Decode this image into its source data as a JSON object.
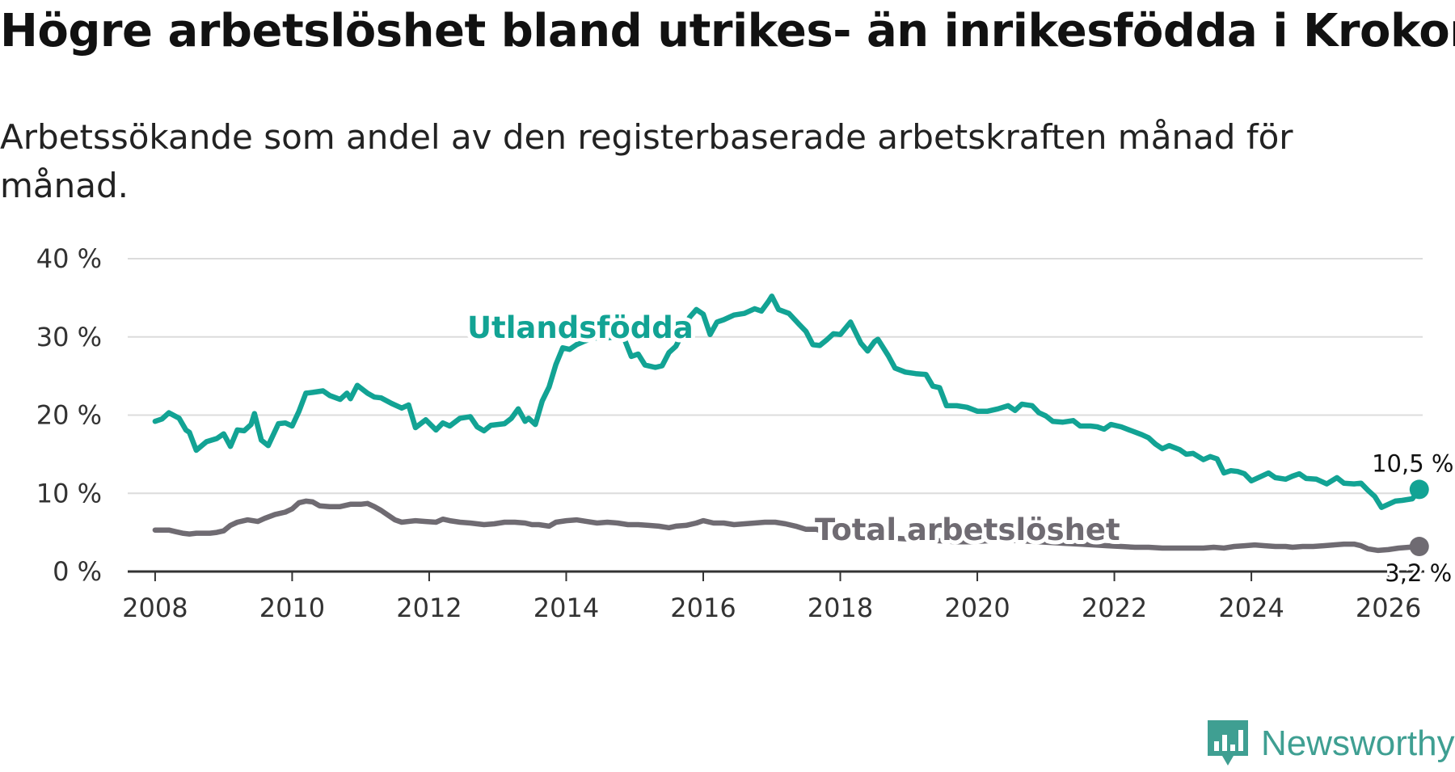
{
  "header": {
    "title": "Högre arbetslöshet bland utrikes- än inrikesfödda i Krokom",
    "subtitle": "Arbetssökande som andel av den registerbaserade arbetskraften månad för månad."
  },
  "brand": {
    "name": "Newsworthy",
    "icon": "newsworthy-logo-icon",
    "color": "#3f9f92"
  },
  "chart_data": {
    "type": "line",
    "title": "Högre arbetslöshet bland utrikes- än inrikesfödda i Krokom",
    "subtitle": "Arbetssökande som andel av den registerbaserade arbetskraften månad för månad.",
    "xlabel": "",
    "ylabel": "",
    "xlim": [
      2007.6,
      2026.5
    ],
    "ylim": [
      0,
      40
    ],
    "x_ticks": [
      2008,
      2010,
      2012,
      2014,
      2016,
      2018,
      2020,
      2022,
      2024,
      2026
    ],
    "x_tick_labels": [
      "2008",
      "2010",
      "2012",
      "2014",
      "2016",
      "2018",
      "2020",
      "2022",
      "2024",
      "2026"
    ],
    "y_ticks": [
      0,
      10,
      20,
      30,
      40
    ],
    "y_tick_labels": [
      "0 %",
      "10 %",
      "20 %",
      "30 %",
      "40 %"
    ],
    "grid": true,
    "legend": "inline labels",
    "series": [
      {
        "name": "Utlandsfödda",
        "color": "#12a394",
        "end_label": "10,5 %",
        "points": [
          [
            2008.0,
            19.2
          ],
          [
            2008.1,
            19.5
          ],
          [
            2008.2,
            20.3
          ],
          [
            2008.35,
            19.6
          ],
          [
            2008.45,
            18.1
          ],
          [
            2008.5,
            17.8
          ],
          [
            2008.6,
            15.5
          ],
          [
            2008.75,
            16.6
          ],
          [
            2008.9,
            17.0
          ],
          [
            2009.0,
            17.6
          ],
          [
            2009.1,
            16.0
          ],
          [
            2009.2,
            18.1
          ],
          [
            2009.3,
            18.0
          ],
          [
            2009.4,
            18.8
          ],
          [
            2009.45,
            20.2
          ],
          [
            2009.55,
            16.8
          ],
          [
            2009.65,
            16.1
          ],
          [
            2009.8,
            18.9
          ],
          [
            2009.9,
            19.0
          ],
          [
            2010.0,
            18.6
          ],
          [
            2010.1,
            20.5
          ],
          [
            2010.2,
            22.8
          ],
          [
            2010.3,
            22.9
          ],
          [
            2010.45,
            23.1
          ],
          [
            2010.55,
            22.5
          ],
          [
            2010.7,
            22.0
          ],
          [
            2010.8,
            22.8
          ],
          [
            2010.85,
            22.1
          ],
          [
            2010.95,
            23.8
          ],
          [
            2011.1,
            22.8
          ],
          [
            2011.2,
            22.3
          ],
          [
            2011.3,
            22.2
          ],
          [
            2011.45,
            21.5
          ],
          [
            2011.6,
            20.9
          ],
          [
            2011.7,
            21.3
          ],
          [
            2011.8,
            18.4
          ],
          [
            2011.95,
            19.4
          ],
          [
            2012.1,
            18.1
          ],
          [
            2012.2,
            19.0
          ],
          [
            2012.3,
            18.6
          ],
          [
            2012.45,
            19.6
          ],
          [
            2012.6,
            19.8
          ],
          [
            2012.7,
            18.5
          ],
          [
            2012.8,
            18.0
          ],
          [
            2012.9,
            18.7
          ],
          [
            2013.0,
            18.8
          ],
          [
            2013.1,
            18.9
          ],
          [
            2013.2,
            19.6
          ],
          [
            2013.3,
            20.8
          ],
          [
            2013.4,
            19.2
          ],
          [
            2013.45,
            19.6
          ],
          [
            2013.55,
            18.8
          ],
          [
            2013.65,
            21.8
          ],
          [
            2013.75,
            23.6
          ],
          [
            2013.85,
            26.5
          ],
          [
            2013.95,
            28.6
          ],
          [
            2014.05,
            28.4
          ],
          [
            2014.15,
            29.0
          ],
          [
            2014.25,
            29.4
          ],
          [
            2014.4,
            29.9
          ],
          [
            2014.55,
            29.8
          ],
          [
            2014.7,
            30.0
          ],
          [
            2014.85,
            29.7
          ],
          [
            2014.95,
            27.5
          ],
          [
            2015.05,
            27.8
          ],
          [
            2015.15,
            26.4
          ],
          [
            2015.3,
            26.1
          ],
          [
            2015.4,
            26.3
          ],
          [
            2015.5,
            28.0
          ],
          [
            2015.6,
            28.8
          ],
          [
            2015.7,
            30.5
          ],
          [
            2015.8,
            32.5
          ],
          [
            2015.9,
            33.5
          ],
          [
            2016.0,
            32.9
          ],
          [
            2016.1,
            30.3
          ],
          [
            2016.2,
            31.9
          ],
          [
            2016.3,
            32.2
          ],
          [
            2016.45,
            32.8
          ],
          [
            2016.6,
            33.0
          ],
          [
            2016.75,
            33.6
          ],
          [
            2016.85,
            33.3
          ],
          [
            2016.95,
            34.5
          ],
          [
            2017.0,
            35.2
          ],
          [
            2017.1,
            33.5
          ],
          [
            2017.25,
            33.0
          ],
          [
            2017.4,
            31.6
          ],
          [
            2017.5,
            30.7
          ],
          [
            2017.6,
            29.0
          ],
          [
            2017.7,
            28.9
          ],
          [
            2017.8,
            29.6
          ],
          [
            2017.9,
            30.4
          ],
          [
            2018.0,
            30.3
          ],
          [
            2018.15,
            31.9
          ],
          [
            2018.3,
            29.2
          ],
          [
            2018.4,
            28.2
          ],
          [
            2018.5,
            29.4
          ],
          [
            2018.55,
            29.7
          ],
          [
            2018.7,
            27.6
          ],
          [
            2018.8,
            26.0
          ],
          [
            2018.95,
            25.5
          ],
          [
            2019.1,
            25.3
          ],
          [
            2019.25,
            25.2
          ],
          [
            2019.35,
            23.7
          ],
          [
            2019.45,
            23.5
          ],
          [
            2019.55,
            21.2
          ],
          [
            2019.7,
            21.2
          ],
          [
            2019.85,
            21.0
          ],
          [
            2020.0,
            20.5
          ],
          [
            2020.15,
            20.5
          ],
          [
            2020.3,
            20.8
          ],
          [
            2020.45,
            21.2
          ],
          [
            2020.55,
            20.6
          ],
          [
            2020.65,
            21.4
          ],
          [
            2020.8,
            21.2
          ],
          [
            2020.9,
            20.3
          ],
          [
            2021.0,
            19.9
          ],
          [
            2021.1,
            19.2
          ],
          [
            2021.25,
            19.1
          ],
          [
            2021.4,
            19.3
          ],
          [
            2021.5,
            18.6
          ],
          [
            2021.65,
            18.6
          ],
          [
            2021.75,
            18.5
          ],
          [
            2021.85,
            18.2
          ],
          [
            2021.95,
            18.8
          ],
          [
            2022.1,
            18.5
          ],
          [
            2022.25,
            18.0
          ],
          [
            2022.4,
            17.5
          ],
          [
            2022.5,
            17.1
          ],
          [
            2022.6,
            16.3
          ],
          [
            2022.7,
            15.7
          ],
          [
            2022.8,
            16.1
          ],
          [
            2022.95,
            15.6
          ],
          [
            2023.05,
            15.0
          ],
          [
            2023.15,
            15.1
          ],
          [
            2023.3,
            14.3
          ],
          [
            2023.4,
            14.7
          ],
          [
            2023.5,
            14.4
          ],
          [
            2023.6,
            12.6
          ],
          [
            2023.7,
            12.9
          ],
          [
            2023.8,
            12.8
          ],
          [
            2023.9,
            12.5
          ],
          [
            2024.0,
            11.6
          ],
          [
            2024.1,
            12.0
          ],
          [
            2024.25,
            12.6
          ],
          [
            2024.35,
            12.0
          ],
          [
            2024.5,
            11.8
          ],
          [
            2024.6,
            12.2
          ],
          [
            2024.7,
            12.5
          ],
          [
            2024.8,
            11.9
          ],
          [
            2024.95,
            11.8
          ],
          [
            2025.1,
            11.2
          ],
          [
            2025.25,
            12.0
          ],
          [
            2025.35,
            11.3
          ],
          [
            2025.5,
            11.2
          ],
          [
            2025.6,
            11.3
          ],
          [
            2025.7,
            10.4
          ],
          [
            2025.8,
            9.6
          ],
          [
            2025.9,
            8.2
          ],
          [
            2026.0,
            8.6
          ],
          [
            2026.1,
            9.0
          ],
          [
            2026.2,
            9.1
          ],
          [
            2026.35,
            9.3
          ],
          [
            2026.45,
            10.5
          ]
        ]
      },
      {
        "name": "Total arbetslöshet",
        "color": "#6f6b72",
        "end_label": "3,2 %",
        "points": [
          [
            2008.0,
            5.3
          ],
          [
            2008.2,
            5.3
          ],
          [
            2008.3,
            5.1
          ],
          [
            2008.4,
            4.9
          ],
          [
            2008.5,
            4.8
          ],
          [
            2008.6,
            4.9
          ],
          [
            2008.8,
            4.9
          ],
          [
            2008.9,
            5.0
          ],
          [
            2009.0,
            5.2
          ],
          [
            2009.1,
            5.9
          ],
          [
            2009.2,
            6.3
          ],
          [
            2009.35,
            6.6
          ],
          [
            2009.5,
            6.4
          ],
          [
            2009.6,
            6.8
          ],
          [
            2009.75,
            7.3
          ],
          [
            2009.9,
            7.6
          ],
          [
            2010.0,
            8.0
          ],
          [
            2010.1,
            8.8
          ],
          [
            2010.2,
            9.0
          ],
          [
            2010.3,
            8.9
          ],
          [
            2010.4,
            8.4
          ],
          [
            2010.55,
            8.3
          ],
          [
            2010.7,
            8.3
          ],
          [
            2010.85,
            8.6
          ],
          [
            2011.0,
            8.6
          ],
          [
            2011.1,
            8.7
          ],
          [
            2011.2,
            8.3
          ],
          [
            2011.3,
            7.8
          ],
          [
            2011.4,
            7.2
          ],
          [
            2011.5,
            6.6
          ],
          [
            2011.6,
            6.3
          ],
          [
            2011.8,
            6.5
          ],
          [
            2011.95,
            6.4
          ],
          [
            2012.1,
            6.3
          ],
          [
            2012.2,
            6.7
          ],
          [
            2012.3,
            6.5
          ],
          [
            2012.45,
            6.3
          ],
          [
            2012.6,
            6.2
          ],
          [
            2012.8,
            6.0
          ],
          [
            2012.95,
            6.1
          ],
          [
            2013.1,
            6.3
          ],
          [
            2013.25,
            6.3
          ],
          [
            2013.4,
            6.2
          ],
          [
            2013.5,
            6.0
          ],
          [
            2013.6,
            6.0
          ],
          [
            2013.75,
            5.8
          ],
          [
            2013.85,
            6.3
          ],
          [
            2014.0,
            6.5
          ],
          [
            2014.15,
            6.6
          ],
          [
            2014.3,
            6.4
          ],
          [
            2014.45,
            6.2
          ],
          [
            2014.6,
            6.3
          ],
          [
            2014.75,
            6.2
          ],
          [
            2014.9,
            6.0
          ],
          [
            2015.05,
            6.0
          ],
          [
            2015.2,
            5.9
          ],
          [
            2015.35,
            5.8
          ],
          [
            2015.5,
            5.6
          ],
          [
            2015.6,
            5.8
          ],
          [
            2015.75,
            5.9
          ],
          [
            2015.9,
            6.2
          ],
          [
            2016.0,
            6.5
          ],
          [
            2016.15,
            6.2
          ],
          [
            2016.3,
            6.2
          ],
          [
            2016.45,
            6.0
          ],
          [
            2016.6,
            6.1
          ],
          [
            2016.75,
            6.2
          ],
          [
            2016.9,
            6.3
          ],
          [
            2017.05,
            6.3
          ],
          [
            2017.2,
            6.1
          ],
          [
            2017.35,
            5.8
          ],
          [
            2017.5,
            5.4
          ],
          [
            2017.65,
            5.4
          ],
          [
            2017.8,
            5.0
          ],
          [
            2017.95,
            4.8
          ],
          [
            2018.1,
            4.6
          ],
          [
            2018.3,
            4.5
          ],
          [
            2018.5,
            4.4
          ],
          [
            2018.7,
            4.3
          ],
          [
            2018.9,
            4.2
          ],
          [
            2019.1,
            4.1
          ],
          [
            2019.3,
            4.0
          ],
          [
            2019.5,
            3.9
          ],
          [
            2019.7,
            3.8
          ],
          [
            2019.9,
            3.8
          ],
          [
            2020.1,
            3.9
          ],
          [
            2020.3,
            4.0
          ],
          [
            2020.5,
            4.0
          ],
          [
            2020.7,
            3.9
          ],
          [
            2020.9,
            3.8
          ],
          [
            2021.1,
            3.7
          ],
          [
            2021.3,
            3.6
          ],
          [
            2021.5,
            3.5
          ],
          [
            2021.7,
            3.4
          ],
          [
            2021.9,
            3.3
          ],
          [
            2022.1,
            3.2
          ],
          [
            2022.3,
            3.1
          ],
          [
            2022.5,
            3.1
          ],
          [
            2022.7,
            3.0
          ],
          [
            2022.9,
            3.0
          ],
          [
            2023.1,
            3.0
          ],
          [
            2023.3,
            3.0
          ],
          [
            2023.45,
            3.1
          ],
          [
            2023.6,
            3.0
          ],
          [
            2023.75,
            3.2
          ],
          [
            2023.9,
            3.3
          ],
          [
            2024.05,
            3.4
          ],
          [
            2024.2,
            3.3
          ],
          [
            2024.35,
            3.2
          ],
          [
            2024.5,
            3.2
          ],
          [
            2024.6,
            3.1
          ],
          [
            2024.75,
            3.2
          ],
          [
            2024.9,
            3.2
          ],
          [
            2025.05,
            3.3
          ],
          [
            2025.2,
            3.4
          ],
          [
            2025.35,
            3.5
          ],
          [
            2025.5,
            3.5
          ],
          [
            2025.6,
            3.3
          ],
          [
            2025.7,
            2.9
          ],
          [
            2025.85,
            2.7
          ],
          [
            2026.0,
            2.8
          ],
          [
            2026.15,
            3.0
          ],
          [
            2026.3,
            3.1
          ],
          [
            2026.45,
            3.2
          ]
        ]
      }
    ]
  }
}
